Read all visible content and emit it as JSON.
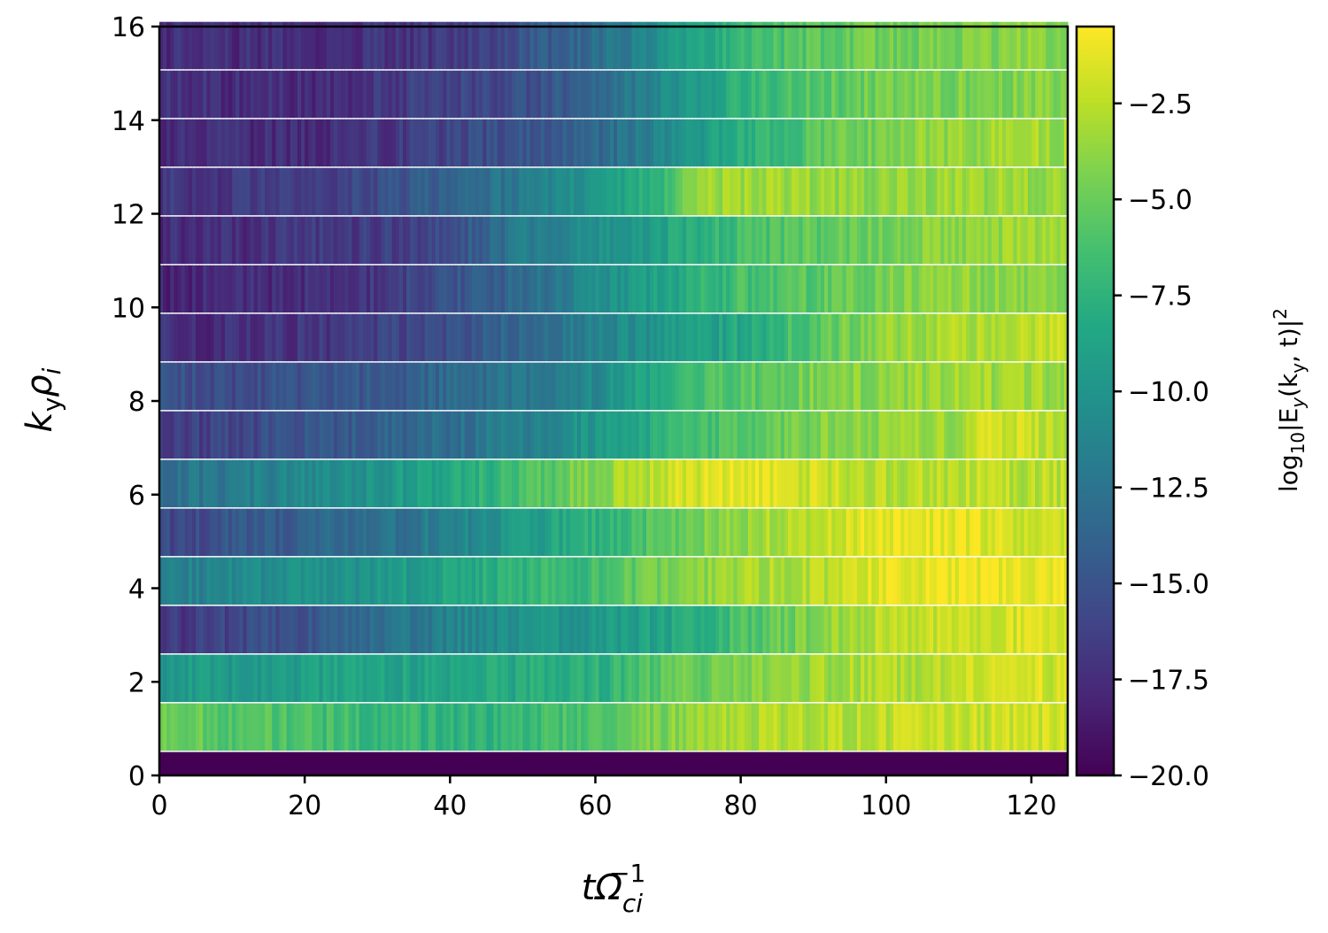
{
  "chart_data": {
    "type": "heatmap",
    "title": "",
    "xlabel": {
      "base": "tΩ",
      "sub": "ci",
      "sup": "−1"
    },
    "ylabel": {
      "base": "k",
      "sub1": "y",
      "mid": "ρ",
      "sub2": "i"
    },
    "colorbar_label": {
      "pre": "log",
      "sub1": "10",
      "mid": "|E",
      "sub2": "y",
      "args": "(k",
      "sub3": "y",
      "end": ", t)|",
      "sup": "2"
    },
    "colormap": "viridis",
    "color_range": [
      -20.0,
      -0.5
    ],
    "xlim": [
      0,
      125
    ],
    "ylim": [
      0,
      16
    ],
    "x_ticks": [
      "0",
      "20",
      "40",
      "60",
      "80",
      "100",
      "120"
    ],
    "y_ticks": [
      "0",
      "2",
      "4",
      "6",
      "8",
      "10",
      "12",
      "14",
      "16"
    ],
    "colorbar_ticks": [
      "−2.5",
      "−5.0",
      "−7.5",
      "−10.0",
      "−12.5",
      "−15.0",
      "−17.5",
      "−20.0"
    ],
    "colorbar_tick_values": [
      -2.5,
      -5.0,
      -7.5,
      -10.0,
      -12.5,
      -15.0,
      -17.5,
      -20.0
    ],
    "rows": [
      {
        "ky": 0.0,
        "values": [
          [
            0,
            -20
          ],
          [
            125,
            -20
          ]
        ]
      },
      {
        "ky": 1.04,
        "values": [
          [
            0,
            -4.6
          ],
          [
            10,
            -5.6
          ],
          [
            25,
            -6.6
          ],
          [
            35,
            -7.2
          ],
          [
            45,
            -7.4
          ],
          [
            55,
            -6.4
          ],
          [
            65,
            -5.0
          ],
          [
            75,
            -3.4
          ],
          [
            85,
            -2.8
          ],
          [
            95,
            -2.6
          ],
          [
            105,
            -2.4
          ],
          [
            115,
            -2.1
          ],
          [
            124,
            -2.1
          ]
        ]
      },
      {
        "ky": 2.08,
        "values": [
          [
            0,
            -9.6
          ],
          [
            10,
            -9.4
          ],
          [
            20,
            -9.2
          ],
          [
            30,
            -8.8
          ],
          [
            40,
            -8.6
          ],
          [
            50,
            -8.2
          ],
          [
            60,
            -7.8
          ],
          [
            70,
            -5.4
          ],
          [
            80,
            -4.6
          ],
          [
            90,
            -3.4
          ],
          [
            100,
            -2.8
          ],
          [
            110,
            -2.6
          ],
          [
            115,
            -1.2
          ],
          [
            120,
            -1.6
          ],
          [
            124,
            -2.0
          ]
        ]
      },
      {
        "ky": 3.12,
        "values": [
          [
            0,
            -17.0
          ],
          [
            10,
            -16.0
          ],
          [
            20,
            -15.0
          ],
          [
            30,
            -13.0
          ],
          [
            40,
            -11.5
          ],
          [
            50,
            -10.0
          ],
          [
            60,
            -9.6
          ],
          [
            70,
            -8.6
          ],
          [
            80,
            -6.2
          ],
          [
            90,
            -4.2
          ],
          [
            100,
            -2.6
          ],
          [
            110,
            -2.0
          ],
          [
            120,
            -1.6
          ],
          [
            124,
            -1.5
          ]
        ]
      },
      {
        "ky": 4.16,
        "values": [
          [
            0,
            -12.0
          ],
          [
            10,
            -11.0
          ],
          [
            20,
            -10.5
          ],
          [
            30,
            -9.8
          ],
          [
            40,
            -8.6
          ],
          [
            50,
            -7.6
          ],
          [
            60,
            -6.4
          ],
          [
            70,
            -4.6
          ],
          [
            80,
            -3.2
          ],
          [
            90,
            -2.6
          ],
          [
            100,
            -1.4
          ],
          [
            110,
            -1.0
          ],
          [
            120,
            -0.9
          ],
          [
            124,
            -1.0
          ]
        ]
      },
      {
        "ky": 5.2,
        "values": [
          [
            0,
            -16.0
          ],
          [
            10,
            -15.0
          ],
          [
            20,
            -14.0
          ],
          [
            30,
            -13.0
          ],
          [
            40,
            -11.5
          ],
          [
            50,
            -9.5
          ],
          [
            60,
            -7.6
          ],
          [
            70,
            -5.6
          ],
          [
            80,
            -3.6
          ],
          [
            90,
            -2.2
          ],
          [
            100,
            -1.0
          ],
          [
            110,
            -1.4
          ],
          [
            120,
            -2.0
          ],
          [
            124,
            -2.2
          ]
        ]
      },
      {
        "ky": 6.24,
        "values": [
          [
            0,
            -13.0
          ],
          [
            10,
            -12.0
          ],
          [
            20,
            -11.0
          ],
          [
            30,
            -9.8
          ],
          [
            40,
            -8.4
          ],
          [
            50,
            -6.4
          ],
          [
            60,
            -4.0
          ],
          [
            70,
            -2.0
          ],
          [
            80,
            -1.2
          ],
          [
            90,
            -2.0
          ],
          [
            100,
            -2.6
          ],
          [
            110,
            -2.4
          ],
          [
            120,
            -2.6
          ],
          [
            124,
            -2.6
          ]
        ]
      },
      {
        "ky": 7.28,
        "values": [
          [
            0,
            -17.0
          ],
          [
            10,
            -16.0
          ],
          [
            20,
            -15.0
          ],
          [
            30,
            -14.0
          ],
          [
            40,
            -13.0
          ],
          [
            50,
            -11.5
          ],
          [
            60,
            -9.6
          ],
          [
            70,
            -7.6
          ],
          [
            80,
            -5.6
          ],
          [
            90,
            -4.4
          ],
          [
            100,
            -3.6
          ],
          [
            110,
            -3.2
          ],
          [
            115,
            -1.6
          ],
          [
            120,
            -2.4
          ],
          [
            124,
            -2.6
          ]
        ]
      },
      {
        "ky": 8.32,
        "values": [
          [
            0,
            -15.0
          ],
          [
            10,
            -15.5
          ],
          [
            20,
            -15.0
          ],
          [
            30,
            -14.5
          ],
          [
            40,
            -13.5
          ],
          [
            50,
            -12.5
          ],
          [
            60,
            -11.0
          ],
          [
            70,
            -7.4
          ],
          [
            80,
            -5.6
          ],
          [
            90,
            -4.4
          ],
          [
            100,
            -3.8
          ],
          [
            110,
            -3.4
          ],
          [
            120,
            -3.2
          ],
          [
            124,
            -3.4
          ]
        ]
      },
      {
        "ky": 9.36,
        "values": [
          [
            0,
            -17.5
          ],
          [
            10,
            -17.5
          ],
          [
            20,
            -17.0
          ],
          [
            30,
            -16.5
          ],
          [
            40,
            -15.0
          ],
          [
            50,
            -13.5
          ],
          [
            60,
            -11.5
          ],
          [
            70,
            -9.6
          ],
          [
            80,
            -8.4
          ],
          [
            90,
            -5.6
          ],
          [
            100,
            -3.6
          ],
          [
            110,
            -2.8
          ],
          [
            120,
            -2.4
          ],
          [
            124,
            -2.4
          ]
        ]
      },
      {
        "ky": 10.4,
        "values": [
          [
            0,
            -18.0
          ],
          [
            10,
            -17.5
          ],
          [
            20,
            -17.5
          ],
          [
            30,
            -17.0
          ],
          [
            40,
            -15.0
          ],
          [
            50,
            -13.5
          ],
          [
            60,
            -10.5
          ],
          [
            70,
            -8.6
          ],
          [
            80,
            -6.4
          ],
          [
            90,
            -5.4
          ],
          [
            100,
            -4.6
          ],
          [
            110,
            -4.0
          ],
          [
            120,
            -3.8
          ],
          [
            124,
            -4.0
          ]
        ]
      },
      {
        "ky": 11.44,
        "values": [
          [
            0,
            -17.5
          ],
          [
            10,
            -17.5
          ],
          [
            20,
            -17.0
          ],
          [
            30,
            -16.5
          ],
          [
            40,
            -15.5
          ],
          [
            50,
            -12.0
          ],
          [
            60,
            -10.5
          ],
          [
            70,
            -8.6
          ],
          [
            80,
            -6.4
          ],
          [
            90,
            -5.4
          ],
          [
            100,
            -4.4
          ],
          [
            110,
            -3.8
          ],
          [
            120,
            -3.6
          ],
          [
            124,
            -3.8
          ]
        ]
      },
      {
        "ky": 12.48,
        "values": [
          [
            0,
            -17.0
          ],
          [
            10,
            -17.0
          ],
          [
            20,
            -16.5
          ],
          [
            30,
            -15.5
          ],
          [
            40,
            -13.5
          ],
          [
            50,
            -12.0
          ],
          [
            60,
            -9.6
          ],
          [
            70,
            -6.4
          ],
          [
            75,
            -3.6
          ],
          [
            80,
            -3.4
          ],
          [
            90,
            -3.6
          ],
          [
            100,
            -3.8
          ],
          [
            110,
            -3.4
          ],
          [
            120,
            -3.6
          ],
          [
            124,
            -3.6
          ]
        ]
      },
      {
        "ky": 13.52,
        "values": [
          [
            0,
            -17.5
          ],
          [
            10,
            -17.5
          ],
          [
            20,
            -17.5
          ],
          [
            30,
            -17.0
          ],
          [
            40,
            -16.0
          ],
          [
            50,
            -15.0
          ],
          [
            60,
            -13.5
          ],
          [
            70,
            -11.0
          ],
          [
            80,
            -7.6
          ],
          [
            90,
            -5.8
          ],
          [
            100,
            -4.2
          ],
          [
            110,
            -3.6
          ],
          [
            120,
            -3.2
          ],
          [
            124,
            -3.4
          ]
        ]
      },
      {
        "ky": 14.56,
        "values": [
          [
            0,
            -17.0
          ],
          [
            10,
            -17.5
          ],
          [
            20,
            -17.5
          ],
          [
            30,
            -17.0
          ],
          [
            40,
            -16.0
          ],
          [
            50,
            -15.5
          ],
          [
            60,
            -13.5
          ],
          [
            70,
            -10.5
          ],
          [
            80,
            -7.6
          ],
          [
            90,
            -5.8
          ],
          [
            100,
            -4.6
          ],
          [
            110,
            -4.4
          ],
          [
            120,
            -4.2
          ],
          [
            124,
            -4.4
          ]
        ]
      },
      {
        "ky": 15.6,
        "values": [
          [
            0,
            -17.5
          ],
          [
            10,
            -17.5
          ],
          [
            20,
            -17.5
          ],
          [
            30,
            -17.0
          ],
          [
            40,
            -17.0
          ],
          [
            50,
            -15.0
          ],
          [
            60,
            -13.0
          ],
          [
            70,
            -10.0
          ],
          [
            80,
            -7.0
          ],
          [
            90,
            -5.6
          ],
          [
            100,
            -4.8
          ],
          [
            110,
            -4.4
          ],
          [
            120,
            -4.0
          ],
          [
            124,
            -4.2
          ]
        ]
      }
    ]
  }
}
